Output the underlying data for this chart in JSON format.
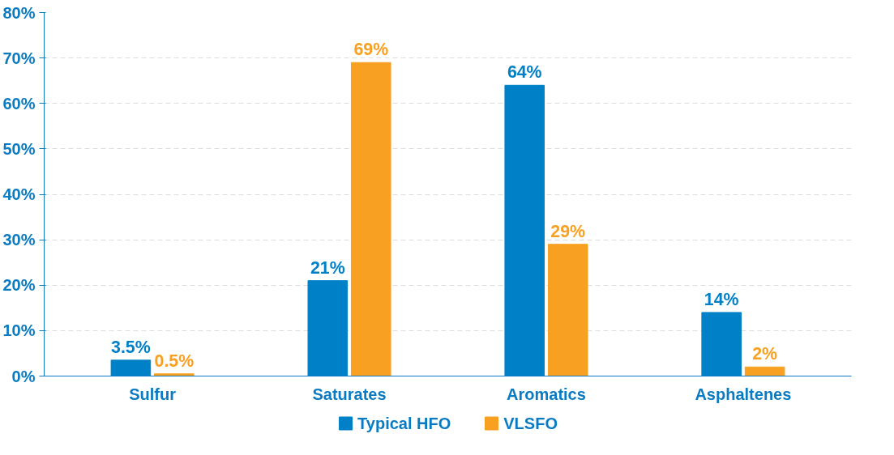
{
  "chart_data": {
    "type": "bar",
    "categories": [
      "Sulfur",
      "Saturates",
      "Aromatics",
      "Asphaltenes"
    ],
    "series": [
      {
        "name": "Typical HFO",
        "color": "#0080c6",
        "values": [
          3.5,
          21,
          64,
          14
        ],
        "value_labels": [
          "3.5%",
          "21%",
          "64%",
          "14%"
        ]
      },
      {
        "name": "VLSFO",
        "color": "#f7a021",
        "values": [
          0.5,
          69,
          29,
          2
        ],
        "value_labels": [
          "0.5%",
          "69%",
          "29%",
          "2%"
        ]
      }
    ],
    "ylim": [
      0,
      80
    ],
    "yticks": [
      {
        "value": 0,
        "label": "0%"
      },
      {
        "value": 10,
        "label": "10%"
      },
      {
        "value": 20,
        "label": "20%"
      },
      {
        "value": 30,
        "label": "30%"
      },
      {
        "value": 40,
        "label": "40%"
      },
      {
        "value": 50,
        "label": "50%"
      },
      {
        "value": 60,
        "label": "60%"
      },
      {
        "value": 70,
        "label": "70%"
      },
      {
        "value": 80,
        "label": "80%"
      }
    ],
    "grid": "y",
    "legend": "bottom"
  }
}
